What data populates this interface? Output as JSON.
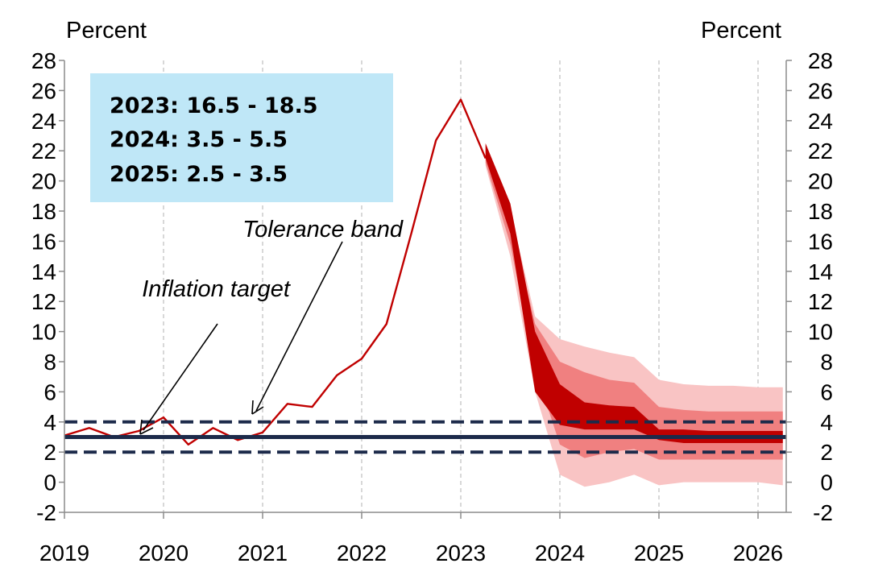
{
  "chart_data": {
    "type": "line",
    "left_unit": "Percent",
    "right_unit": "Percent",
    "x_ticks": [
      "2019",
      "2020",
      "2021",
      "2022",
      "2023",
      "2024",
      "2025",
      "2026"
    ],
    "y_ticks": [
      "28",
      "26",
      "24",
      "22",
      "20",
      "18",
      "16",
      "14",
      "12",
      "10",
      "8",
      "6",
      "4",
      "2",
      "0",
      "-2"
    ],
    "ylim": [
      -2,
      28
    ],
    "xlim": [
      2019,
      2026.3
    ],
    "grid": "vertical-dashed",
    "info_box": {
      "lines": [
        "2023: 16.5 - 18.5",
        "2024: 3.5 - 5.5",
        "2025: 2.5 - 3.5"
      ],
      "color": "#bfe7f7"
    },
    "annotations": {
      "tolerance_band": "Tolerance band",
      "inflation_target": "Inflation target"
    },
    "inflation_target": 3,
    "tolerance_band": [
      2,
      4
    ],
    "target_color": "#1c2a4a",
    "series": [
      {
        "color": "#c00000",
        "points": [
          [
            2019.0,
            3.1
          ],
          [
            2019.25,
            3.6
          ],
          [
            2019.5,
            3.0
          ],
          [
            2019.75,
            3.4
          ],
          [
            2020.0,
            4.3
          ],
          [
            2020.25,
            2.5
          ],
          [
            2020.5,
            3.6
          ],
          [
            2020.75,
            2.8
          ],
          [
            2021.0,
            3.3
          ],
          [
            2021.25,
            5.2
          ],
          [
            2021.5,
            5.0
          ],
          [
            2021.75,
            7.1
          ],
          [
            2022.0,
            8.2
          ],
          [
            2022.25,
            10.5
          ],
          [
            2022.5,
            16.5
          ],
          [
            2022.75,
            22.7
          ],
          [
            2023.0,
            25.4
          ],
          [
            2023.25,
            21.5
          ]
        ]
      }
    ],
    "fan_chart": {
      "x": [
        2023.25,
        2023.5,
        2023.75,
        2024.0,
        2024.25,
        2024.5,
        2024.75,
        2025.0,
        2025.25,
        2025.5,
        2025.75,
        2026.0,
        2026.25
      ],
      "bands": [
        {
          "color": "#f9c4c4",
          "low": [
            21.0,
            15.0,
            6.0,
            0.5,
            -0.3,
            0.0,
            0.5,
            -0.2,
            0.0,
            0.0,
            0.0,
            0.0,
            -0.2
          ],
          "high": [
            22.5,
            18.0,
            11.0,
            9.5,
            9.0,
            8.6,
            8.3,
            6.8,
            6.5,
            6.4,
            6.4,
            6.3,
            6.3
          ]
        },
        {
          "color": "#f08080",
          "low": [
            21.2,
            15.8,
            7.5,
            2.5,
            1.6,
            2.0,
            2.2,
            1.5,
            1.5,
            1.5,
            1.5,
            1.5,
            1.5
          ],
          "high": [
            22.4,
            17.5,
            10.5,
            8.0,
            7.3,
            6.8,
            6.6,
            5.0,
            4.8,
            4.7,
            4.7,
            4.7,
            4.7
          ]
        },
        {
          "color": "#c00000",
          "low": [
            21.5,
            16.5,
            6.0,
            3.8,
            3.5,
            3.5,
            3.5,
            2.8,
            2.6,
            2.6,
            2.6,
            2.6,
            2.6
          ],
          "high": [
            22.5,
            18.5,
            10.0,
            6.5,
            5.3,
            5.1,
            5.0,
            3.5,
            3.5,
            3.4,
            3.4,
            3.4,
            3.4
          ]
        }
      ]
    }
  }
}
